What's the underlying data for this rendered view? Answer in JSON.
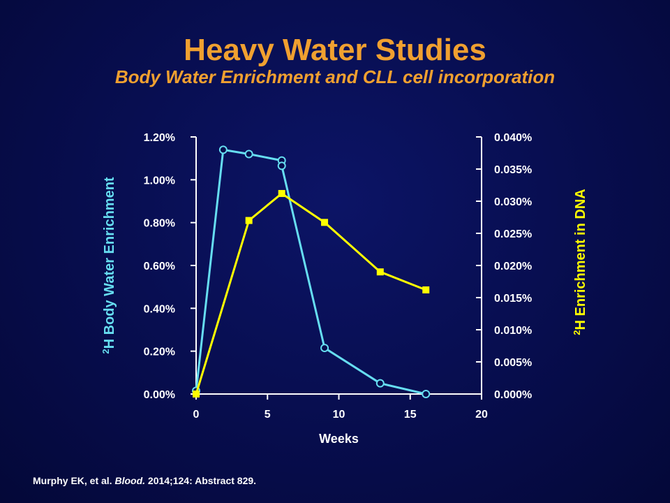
{
  "slide": {
    "title": "Heavy Water Studies",
    "subtitle": "Body Water Enrichment and CLL cell incorporation"
  },
  "chart_data": {
    "type": "line",
    "xlabel": "Weeks",
    "x_ticks": [
      "0",
      "5",
      "10",
      "15",
      "20"
    ],
    "xlim": [
      0,
      20
    ],
    "y_left": {
      "label_sup": "2",
      "label_rest": "H Body Water Enrichment",
      "color": "#66ddf0",
      "ylim": [
        0,
        1.2
      ],
      "ticks": [
        "0.00%",
        "0.20%",
        "0.40%",
        "0.60%",
        "0.80%",
        "1.00%",
        "1.20%"
      ]
    },
    "y_right": {
      "label_sup": "2",
      "label_rest": "H Enrichment in DNA",
      "color": "#ffff00",
      "ylim": [
        0,
        0.04
      ],
      "ticks": [
        "0.000%",
        "0.005%",
        "0.010%",
        "0.015%",
        "0.020%",
        "0.025%",
        "0.030%",
        "0.035%",
        "0.040%"
      ]
    },
    "series": [
      {
        "axis": "left",
        "color": "#66ddf0",
        "marker": "open-circle",
        "x": [
          0,
          1.9,
          3.7,
          6.0,
          6.0,
          9.0,
          12.9,
          16.1
        ],
        "y": [
          0.015,
          1.14,
          1.12,
          1.09,
          1.065,
          0.215,
          0.05,
          0.0
        ]
      },
      {
        "axis": "right",
        "color": "#ffff00",
        "marker": "filled-square",
        "x": [
          0,
          3.7,
          6.0,
          9.0,
          12.9,
          16.1
        ],
        "y": [
          0.0,
          0.027,
          0.0312,
          0.0267,
          0.019,
          0.0162
        ]
      }
    ]
  },
  "citation": {
    "authors": "Murphy EK, et al. ",
    "journal": "Blood.",
    "details": " 2014;124: Abstract 829."
  }
}
